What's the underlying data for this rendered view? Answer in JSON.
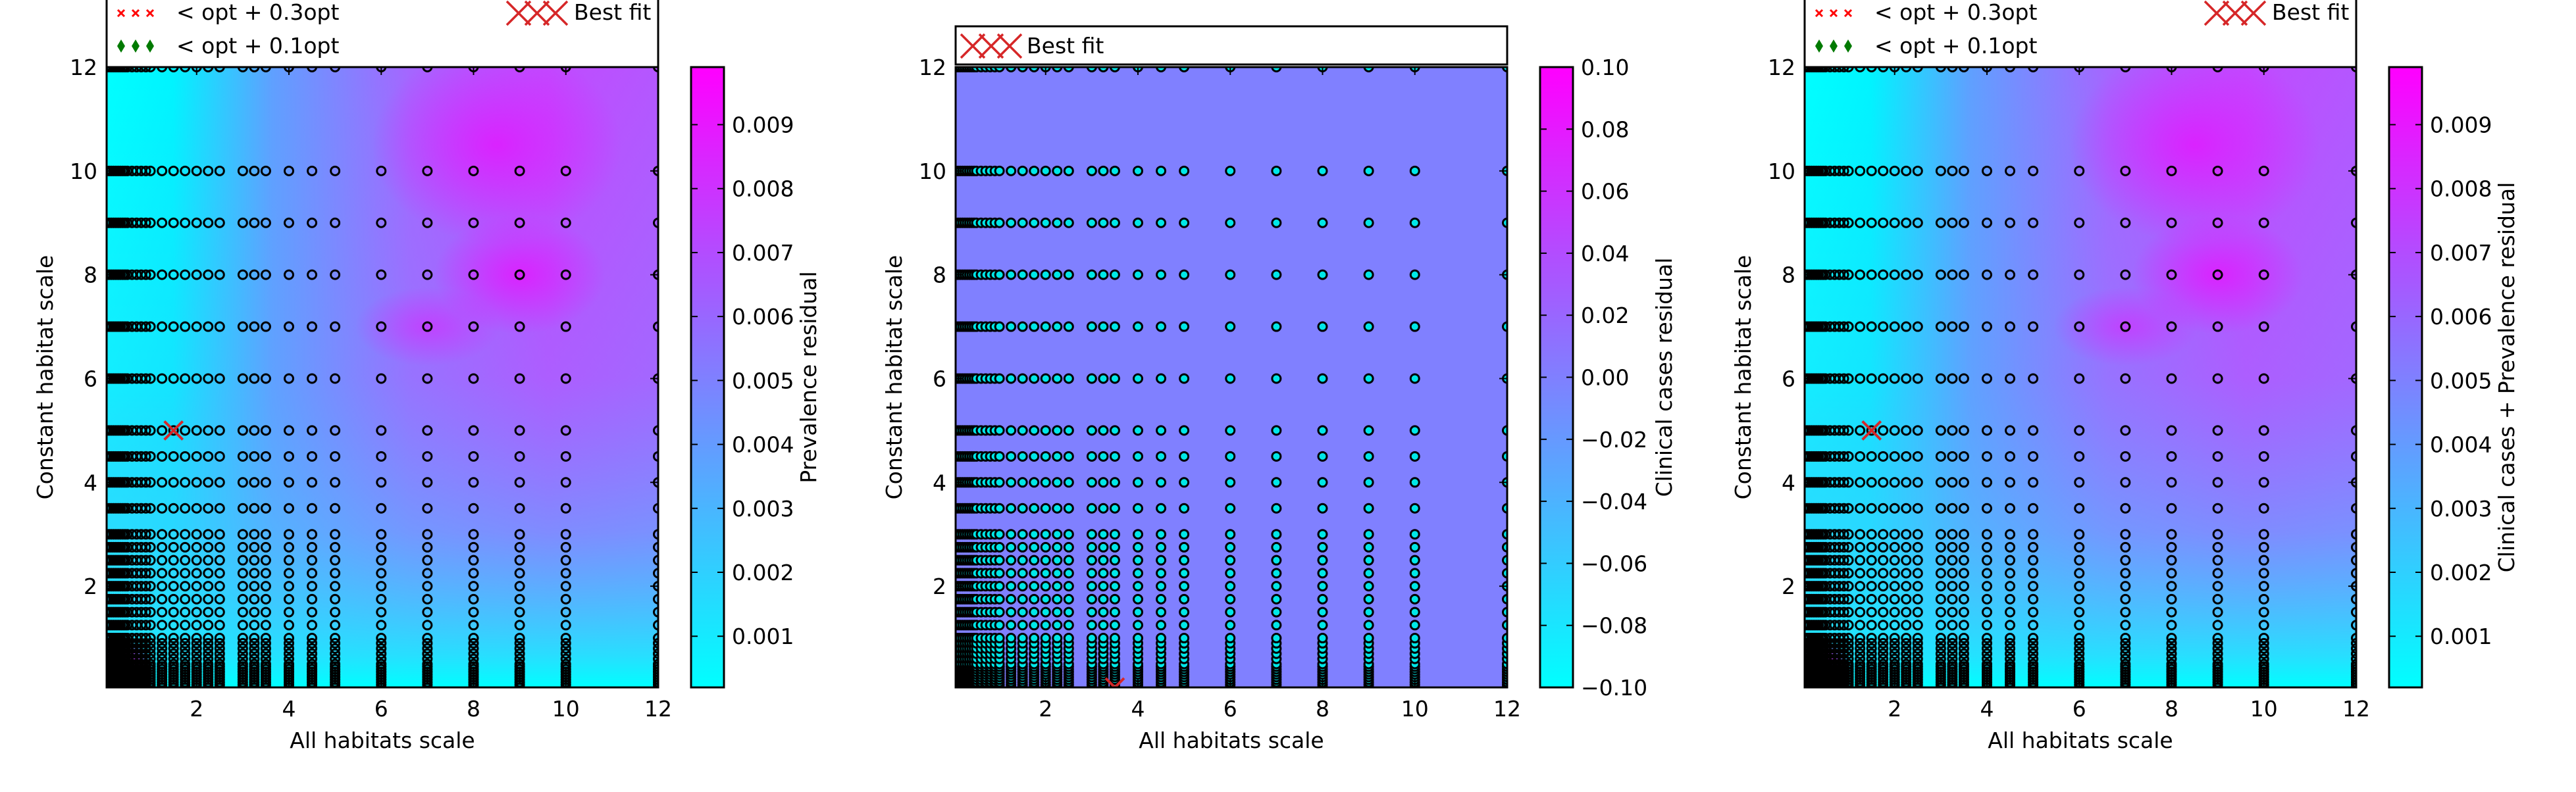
{
  "colors": {
    "colormap_low": "#00ffff",
    "colormap_high": "#ff00ff",
    "best_fit": "#d62728",
    "within_03": "#ff0000",
    "within_01": "#007a00"
  },
  "legend_labels": {
    "within_03": "< opt + 0.3opt",
    "within_01": "< opt + 0.1opt",
    "best_fit": "Best fit"
  },
  "chart_data": [
    {
      "type": "heatmap",
      "panel": "left",
      "xlabel": "All habitats scale",
      "ylabel": "Constant habitat scale",
      "colorbar_label": "Prevalence residual",
      "xlim": [
        0.05,
        12
      ],
      "ylim": [
        0.05,
        12
      ],
      "x_ticks": [
        "2",
        "4",
        "6",
        "8",
        "10",
        "12"
      ],
      "y_ticks": [
        "2",
        "4",
        "6",
        "8",
        "10",
        "12"
      ],
      "colorbar_range": [
        0.0002,
        0.0099
      ],
      "colorbar_ticks": [
        "0.001",
        "0.002",
        "0.003",
        "0.004",
        "0.005",
        "0.006",
        "0.007",
        "0.008",
        "0.009"
      ],
      "legend": [
        "< opt + 0.3opt",
        "< opt + 0.1opt",
        "Best fit"
      ],
      "best_fit": [
        1.5,
        5
      ],
      "grid_x": [
        0.05,
        0.1,
        0.15,
        0.2,
        0.25,
        0.3,
        0.35,
        0.4,
        0.45,
        0.5,
        0.6,
        0.7,
        0.8,
        0.9,
        1.0,
        1.25,
        1.5,
        1.75,
        2.0,
        2.25,
        2.5,
        3.0,
        3.25,
        3.5,
        4.0,
        4.5,
        5.0,
        6.0,
        7.0,
        8.0,
        9.0,
        10.0,
        12.0
      ],
      "grid_y": [
        0.05,
        0.1,
        0.15,
        0.2,
        0.25,
        0.3,
        0.35,
        0.4,
        0.45,
        0.5,
        0.6,
        0.7,
        0.8,
        0.9,
        1.0,
        1.25,
        1.5,
        1.75,
        2.0,
        2.25,
        2.5,
        2.75,
        3.0,
        3.5,
        4.0,
        4.5,
        5.0,
        6.0,
        7.0,
        8.0,
        9.0,
        10.0,
        12.0
      ]
    },
    {
      "type": "heatmap",
      "panel": "middle",
      "xlabel": "All habitats scale",
      "ylabel": "Constant habitat scale",
      "colorbar_label": "Clinical cases residual",
      "xlim": [
        0.05,
        12
      ],
      "ylim": [
        0.05,
        12
      ],
      "x_ticks": [
        "2",
        "4",
        "6",
        "8",
        "10",
        "12"
      ],
      "y_ticks": [
        "2",
        "4",
        "6",
        "8",
        "10",
        "12"
      ],
      "colorbar_range": [
        -0.1,
        0.1
      ],
      "colorbar_ticks": [
        "−0.10",
        "−0.08",
        "−0.06",
        "−0.04",
        "−0.02",
        "0.00",
        "0.02",
        "0.04",
        "0.06",
        "0.08",
        "0.10"
      ],
      "legend": [
        "Best fit"
      ],
      "best_fit": [
        3.5,
        0.05
      ],
      "uniform_value": 0.0,
      "grid_x": [
        0.05,
        0.1,
        0.15,
        0.2,
        0.25,
        0.3,
        0.35,
        0.4,
        0.45,
        0.5,
        0.6,
        0.7,
        0.8,
        0.9,
        1.0,
        1.25,
        1.5,
        1.75,
        2.0,
        2.25,
        2.5,
        3.0,
        3.25,
        3.5,
        4.0,
        4.5,
        5.0,
        6.0,
        7.0,
        8.0,
        9.0,
        10.0,
        12.0
      ],
      "grid_y": [
        0.05,
        0.1,
        0.15,
        0.2,
        0.25,
        0.3,
        0.35,
        0.4,
        0.45,
        0.5,
        0.6,
        0.7,
        0.8,
        0.9,
        1.0,
        1.25,
        1.5,
        1.75,
        2.0,
        2.25,
        2.5,
        2.75,
        3.0,
        3.5,
        4.0,
        4.5,
        5.0,
        6.0,
        7.0,
        8.0,
        9.0,
        10.0,
        12.0
      ]
    },
    {
      "type": "heatmap",
      "panel": "right",
      "xlabel": "All habitats scale",
      "ylabel": "Constant habitat scale",
      "colorbar_label": "Clinical cases + Prevalence residual",
      "xlim": [
        0.05,
        12
      ],
      "ylim": [
        0.05,
        12
      ],
      "x_ticks": [
        "2",
        "4",
        "6",
        "8",
        "10",
        "12"
      ],
      "y_ticks": [
        "2",
        "4",
        "6",
        "8",
        "10",
        "12"
      ],
      "colorbar_range": [
        0.0002,
        0.0099
      ],
      "colorbar_ticks": [
        "0.001",
        "0.002",
        "0.003",
        "0.004",
        "0.005",
        "0.006",
        "0.007",
        "0.008",
        "0.009"
      ],
      "legend": [
        "< opt + 0.3opt",
        "< opt + 0.1opt",
        "Best fit"
      ],
      "best_fit": [
        1.5,
        5
      ],
      "grid_x": [
        0.05,
        0.1,
        0.15,
        0.2,
        0.25,
        0.3,
        0.35,
        0.4,
        0.45,
        0.5,
        0.6,
        0.7,
        0.8,
        0.9,
        1.0,
        1.25,
        1.5,
        1.75,
        2.0,
        2.25,
        2.5,
        3.0,
        3.25,
        3.5,
        4.0,
        4.5,
        5.0,
        6.0,
        7.0,
        8.0,
        9.0,
        10.0,
        12.0
      ],
      "grid_y": [
        0.05,
        0.1,
        0.15,
        0.2,
        0.25,
        0.3,
        0.35,
        0.4,
        0.45,
        0.5,
        0.6,
        0.7,
        0.8,
        0.9,
        1.0,
        1.25,
        1.5,
        1.75,
        2.0,
        2.25,
        2.5,
        2.75,
        3.0,
        3.5,
        4.0,
        4.5,
        5.0,
        6.0,
        7.0,
        8.0,
        9.0,
        10.0,
        12.0
      ]
    }
  ]
}
